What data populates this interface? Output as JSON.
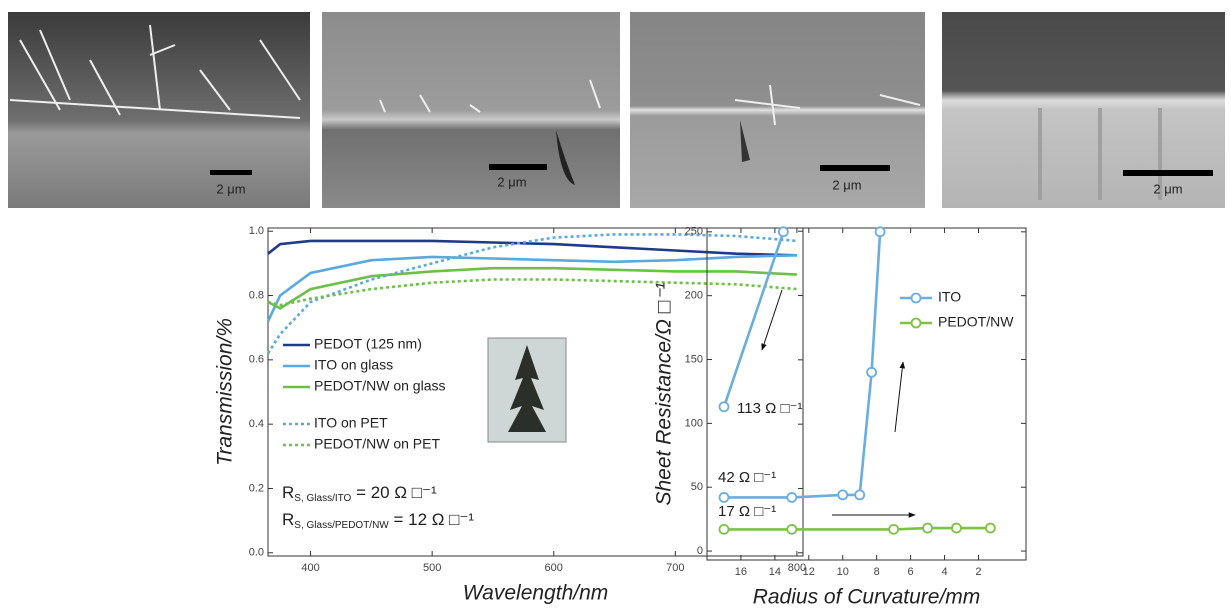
{
  "images": [
    {
      "scale_label": "2 μm"
    },
    {
      "scale_label": "2 μm"
    },
    {
      "scale_label": "2 μm"
    },
    {
      "scale_label": "2 μm"
    }
  ],
  "chart_data": [
    {
      "type": "line",
      "xlabel": "Wavelength/nm",
      "ylabel": "Transmission/%",
      "x": [
        365,
        375,
        400,
        450,
        500,
        550,
        600,
        650,
        700,
        750,
        800
      ],
      "xlim": [
        365,
        805
      ],
      "xticks": [
        400,
        500,
        600,
        700,
        800
      ],
      "ylim": [
        -0.01,
        1.01
      ],
      "yticks": [
        {
          "value": 0,
          "label": "0.0"
        },
        0.2,
        0.4,
        0.6,
        0.8,
        {
          "value": 1,
          "label": "1.0"
        }
      ],
      "series": [
        {
          "name": "PEDOT (125 nm)",
          "color": "#1f3a8a",
          "linestyle": "solid",
          "values": [
            0.93,
            0.96,
            0.97,
            0.97,
            0.97,
            0.965,
            0.96,
            0.95,
            0.94,
            0.93,
            0.925
          ]
        },
        {
          "name": "ITO on glass",
          "color": "#5aa8e0",
          "linestyle": "solid",
          "values": [
            0.72,
            0.8,
            0.87,
            0.91,
            0.92,
            0.915,
            0.91,
            0.905,
            0.91,
            0.92,
            0.925
          ]
        },
        {
          "name": "PEDOT/NW on glass",
          "color": "#6cc04a",
          "linestyle": "solid",
          "values": [
            0.78,
            0.76,
            0.82,
            0.86,
            0.875,
            0.885,
            0.885,
            0.88,
            0.875,
            0.875,
            0.865
          ]
        },
        {
          "name": "ITO on PET",
          "color": "#5aa8e0",
          "linestyle": "dotted",
          "values": [
            0.62,
            0.68,
            0.78,
            0.85,
            0.9,
            0.95,
            0.98,
            0.99,
            0.99,
            0.985,
            0.97
          ]
        },
        {
          "name": "PEDOT/NW on PET",
          "color": "#6cc04a",
          "linestyle": "dotted",
          "values": [
            0.78,
            0.77,
            0.79,
            0.82,
            0.84,
            0.85,
            0.85,
            0.845,
            0.84,
            0.835,
            0.82
          ]
        }
      ],
      "annotations": [
        {
          "main": "R",
          "sub": "S, Glass/ITO",
          "rest": " = 20 Ω □⁻¹"
        },
        {
          "main": "R",
          "sub": "S, Glass/PEDOT/NW",
          "rest": " = 12 Ω □⁻¹"
        }
      ]
    },
    {
      "type": "line",
      "xlabel": "Radius of Curvature/mm",
      "ylabel": "Sheet Resistance/Ω □⁻¹",
      "xlim": [
        18,
        -0.8
      ],
      "xticks": [
        16,
        14,
        12,
        10,
        8,
        6,
        4,
        2
      ],
      "ylim": [
        -7,
        253
      ],
      "yticks": [
        0,
        50,
        100,
        150,
        200,
        250
      ],
      "series": [
        {
          "name": "ITO",
          "color": "#6aaee0",
          "linestyle": "solid",
          "marker": "circle",
          "x": [
            17,
            13,
            10,
            9,
            8.3,
            7.8,
            null,
            17,
            13.5
          ],
          "values": [
            42,
            42,
            44,
            44,
            140,
            250,
            null,
            113,
            250
          ]
        },
        {
          "name": "PEDOT/NW",
          "color": "#7dc242",
          "linestyle": "solid",
          "marker": "circle",
          "x": [
            17,
            13,
            7,
            5,
            3.3,
            1.3
          ],
          "values": [
            17,
            17,
            17,
            18,
            18,
            18
          ]
        }
      ],
      "annotations": [
        {
          "text": "113 Ω □⁻¹"
        },
        {
          "text": "42 Ω □⁻¹"
        },
        {
          "text": "17 Ω □⁻¹"
        }
      ]
    }
  ]
}
